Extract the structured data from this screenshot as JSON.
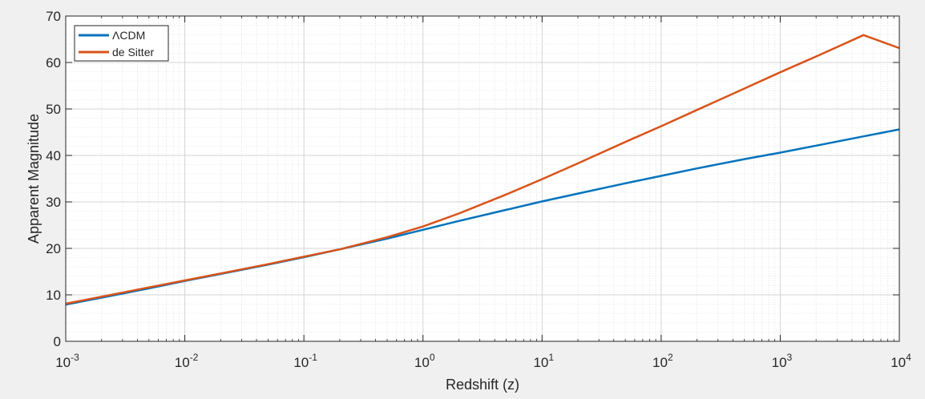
{
  "chart_data": {
    "type": "line",
    "xscale": "log",
    "xlabel": "Redshift (z)",
    "ylabel": "Apparent Magnitude",
    "xlim": [
      0.001,
      10000
    ],
    "ylim": [
      0,
      70
    ],
    "grid": true,
    "minor_grid": true,
    "legend_position": "top-left",
    "x_ticks": [
      {
        "base": "10",
        "exp": "-3"
      },
      {
        "base": "10",
        "exp": "-2"
      },
      {
        "base": "10",
        "exp": "-1"
      },
      {
        "base": "10",
        "exp": "0"
      },
      {
        "base": "10",
        "exp": "1"
      },
      {
        "base": "10",
        "exp": "2"
      },
      {
        "base": "10",
        "exp": "3"
      },
      {
        "base": "10",
        "exp": "4"
      }
    ],
    "y_ticks": [
      "0",
      "10",
      "20",
      "30",
      "40",
      "50",
      "60",
      "70"
    ],
    "series": [
      {
        "name": "ΛCDM",
        "color": "#0072BD",
        "x": [
          0.001,
          0.002,
          0.005,
          0.01,
          0.02,
          0.05,
          0.1,
          0.2,
          0.5,
          1,
          2,
          5,
          10,
          20,
          50,
          100,
          200,
          500,
          1000,
          2000,
          5000,
          10000
        ],
        "y": [
          7.9,
          9.4,
          11.4,
          13.0,
          14.5,
          16.5,
          18.1,
          19.8,
          22.1,
          24.0,
          25.9,
          28.3,
          30.1,
          31.8,
          34.0,
          35.6,
          37.2,
          39.2,
          40.6,
          42.1,
          44.1,
          45.6
        ]
      },
      {
        "name": "de Sitter",
        "color": "#D95319",
        "x": [
          0.001,
          0.002,
          0.005,
          0.01,
          0.02,
          0.05,
          0.1,
          0.2,
          0.5,
          1,
          2,
          5,
          10,
          20,
          50,
          100,
          200,
          500,
          1000,
          2000,
          5000,
          10000
        ],
        "y": [
          8.1,
          9.6,
          11.6,
          13.1,
          14.6,
          16.6,
          18.2,
          19.8,
          22.4,
          24.7,
          27.5,
          31.6,
          34.9,
          38.3,
          42.9,
          46.3,
          49.8,
          54.4,
          57.9,
          61.3,
          65.9,
          63.1
        ]
      }
    ]
  }
}
